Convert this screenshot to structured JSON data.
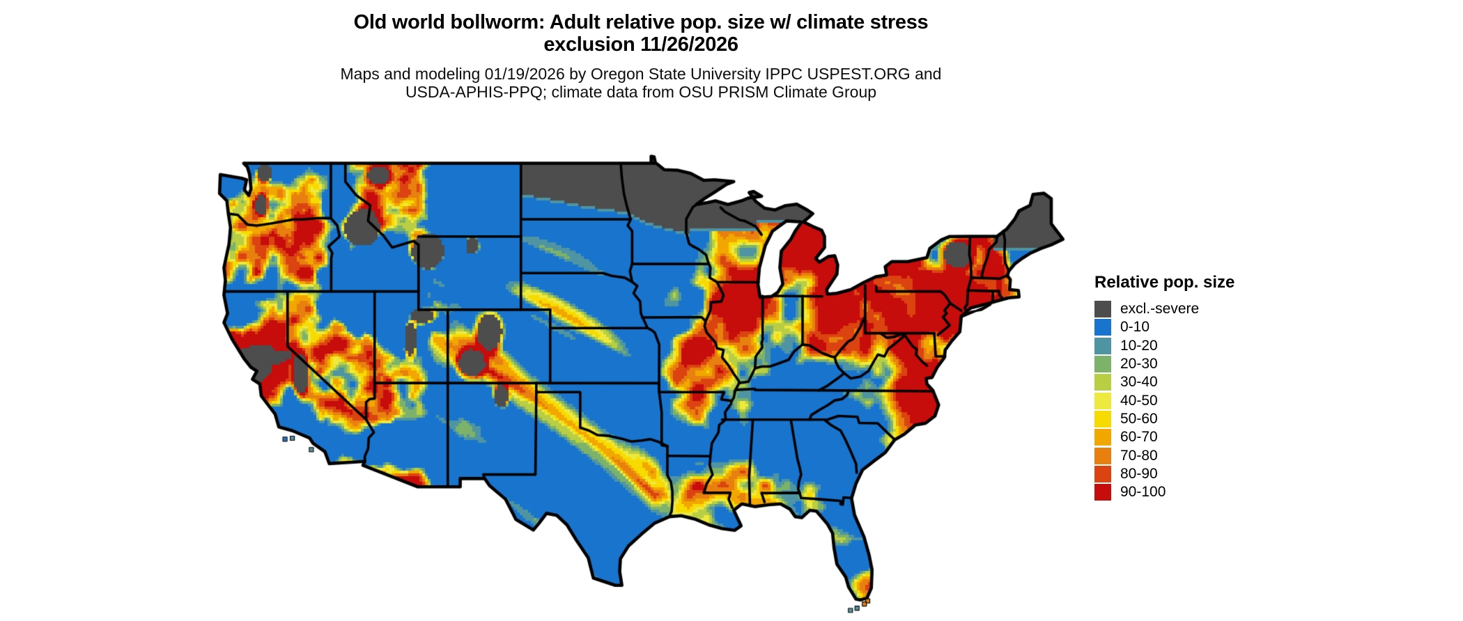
{
  "header": {
    "title_line1": "Old world bollworm: Adult relative pop. size w/ climate stress",
    "title_line2": "exclusion 11/26/2026",
    "subtitle_line1": "Maps and modeling 01/19/2026 by Oregon State University IPPC USPEST.ORG and",
    "subtitle_line2": "USDA-APHIS-PPQ; climate data from OSU PRISM Climate Group"
  },
  "legend": {
    "title": "Relative pop. size",
    "entries": [
      {
        "label": "excl.-severe",
        "color": "#4D4D4D"
      },
      {
        "label": "0-10",
        "color": "#1874CD"
      },
      {
        "label": "10-20",
        "color": "#4E94A3"
      },
      {
        "label": "20-30",
        "color": "#7CB26A"
      },
      {
        "label": "30-40",
        "color": "#B9CE42"
      },
      {
        "label": "40-50",
        "color": "#EDE93F"
      },
      {
        "label": "50-60",
        "color": "#F7DB00"
      },
      {
        "label": "60-70",
        "color": "#F1A700"
      },
      {
        "label": "70-80",
        "color": "#E8800F"
      },
      {
        "label": "80-90",
        "color": "#DB4310"
      },
      {
        "label": "90-100",
        "color": "#C70C0C"
      }
    ]
  },
  "map": {
    "region": "Contiguous United States",
    "background_color": "#FFFFFF",
    "boundary_color": "#000000",
    "water_color": "#FFFFFF"
  }
}
